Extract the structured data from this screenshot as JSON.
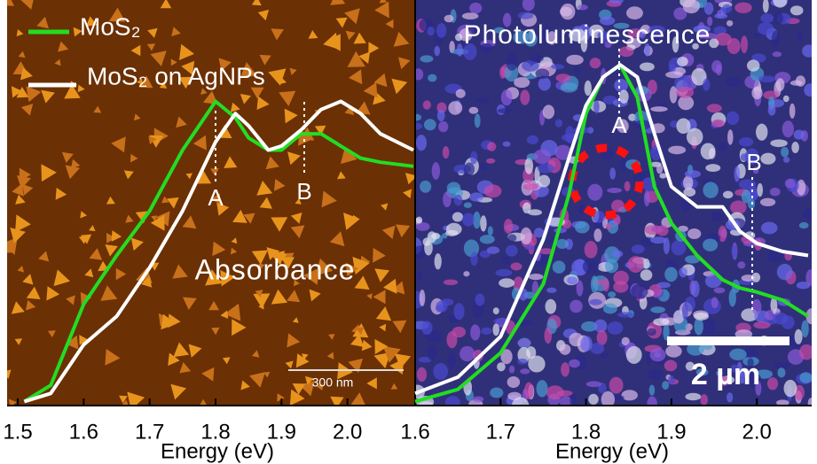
{
  "chart_data": [
    {
      "type": "line",
      "title": "Absorbance",
      "xlabel": "Energy (eV)",
      "x": [
        1.51,
        1.55,
        1.6,
        1.65,
        1.7,
        1.75,
        1.8,
        1.83,
        1.85,
        1.88,
        1.9,
        1.93,
        1.96,
        1.99,
        2.02,
        2.05,
        2.1
      ],
      "series": [
        {
          "name": "MoS₂",
          "color": "#22dd22",
          "values": [
            0.01,
            0.05,
            0.25,
            0.37,
            0.48,
            0.63,
            0.75,
            0.71,
            0.66,
            0.63,
            0.63,
            0.67,
            0.67,
            0.64,
            0.61,
            0.6,
            0.59
          ]
        },
        {
          "name": "MoS₂ on AgNPs",
          "color": "#ffffff",
          "values": [
            0.01,
            0.03,
            0.15,
            0.22,
            0.34,
            0.48,
            0.65,
            0.72,
            0.69,
            0.63,
            0.64,
            0.68,
            0.73,
            0.75,
            0.72,
            0.67,
            0.63
          ]
        }
      ],
      "xlim": [
        1.5,
        2.1
      ],
      "xticks": [
        1.5,
        1.6,
        1.7,
        1.8,
        1.9,
        {
          "value": 2,
          "label": "2.0"
        }
      ],
      "ylim": [
        0,
        1
      ],
      "legend": "upper left",
      "annotations": [
        "A",
        "B",
        "300 nm"
      ]
    },
    {
      "type": "line",
      "title": "Photoluminescence",
      "xlabel": "Energy (eV)",
      "x": [
        1.6,
        1.65,
        1.7,
        1.75,
        1.78,
        1.8,
        1.82,
        1.84,
        1.86,
        1.88,
        1.9,
        1.93,
        1.96,
        1.98,
        2.0,
        2.03,
        2.06
      ],
      "series": [
        {
          "color": "#22dd22",
          "values": [
            0.01,
            0.04,
            0.13,
            0.3,
            0.52,
            0.72,
            0.81,
            0.84,
            0.76,
            0.54,
            0.45,
            0.37,
            0.31,
            0.29,
            0.28,
            0.26,
            0.22
          ]
        },
        {
          "color": "#ffffff",
          "values": [
            0.03,
            0.07,
            0.17,
            0.41,
            0.61,
            0.74,
            0.81,
            0.84,
            0.81,
            0.67,
            0.54,
            0.49,
            0.49,
            0.43,
            0.4,
            0.38,
            0.37
          ]
        }
      ],
      "xlim": [
        1.6,
        2.06
      ],
      "xticks": [
        1.6,
        1.7,
        1.8,
        1.9,
        {
          "value": 2,
          "label": "2.0"
        }
      ],
      "ylim": [
        0,
        1
      ],
      "annotations": [
        "A",
        "B",
        "2 µm"
      ]
    }
  ]
}
